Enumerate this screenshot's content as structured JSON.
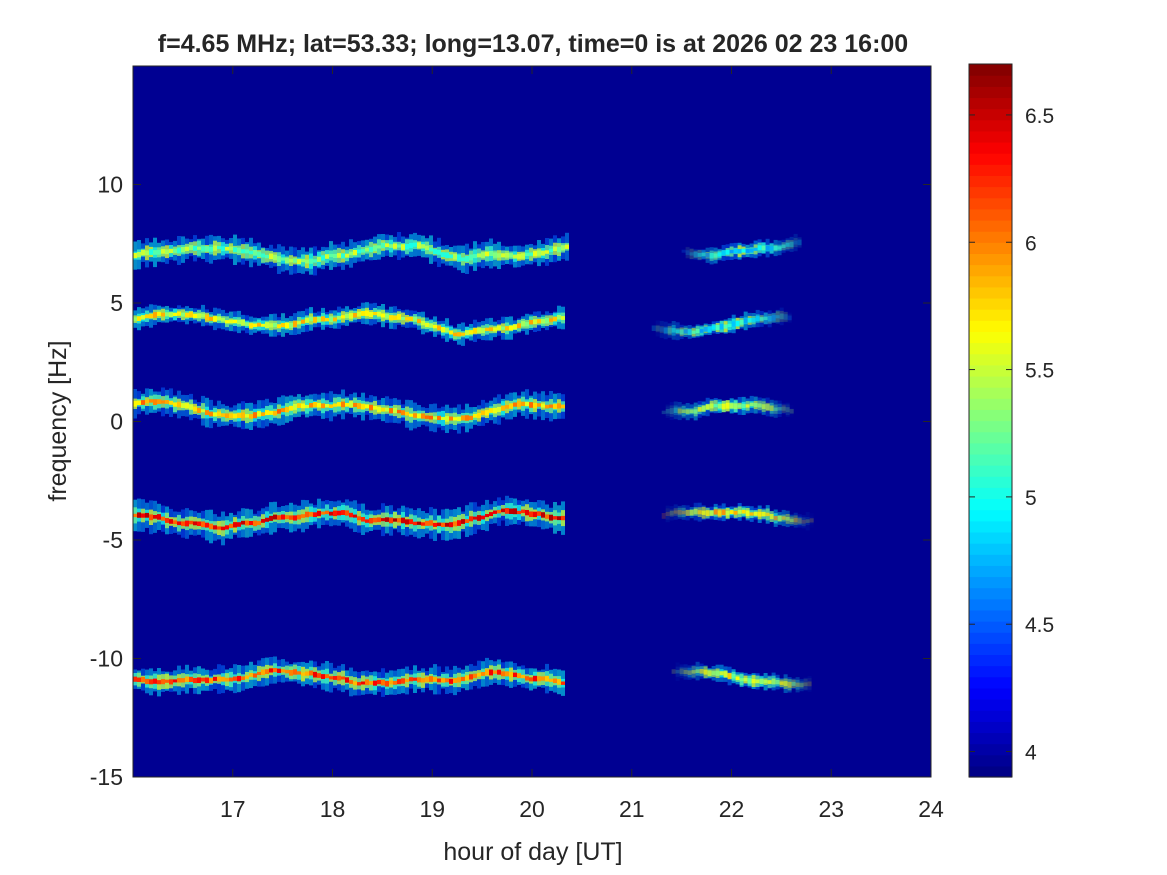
{
  "chart_data": {
    "type": "heatmap",
    "title": "f=4.65 MHz;  lat=53.33; long=13.07, time=0 is at 2026 02 23 16:00",
    "xlabel": "hour of day [UT]",
    "ylabel": "frequency [Hz]",
    "xlim": [
      16,
      24
    ],
    "ylim": [
      -15,
      15
    ],
    "xticks": [
      17,
      18,
      19,
      20,
      21,
      22,
      23,
      24
    ],
    "yticks": [
      -15,
      -10,
      -5,
      0,
      5,
      10
    ],
    "colorbar": {
      "clim": [
        3.9,
        6.7
      ],
      "ticks": [
        4,
        4.5,
        5,
        5.5,
        6,
        6.5
      ],
      "colormap": "jet"
    },
    "background_value": 3.95,
    "traces": [
      {
        "center_hz": 7.2,
        "start_hour": 16.0,
        "end_hour": 20.35,
        "peak": 5.6,
        "spread_hz": 0.45
      },
      {
        "center_hz": 4.2,
        "start_hour": 16.0,
        "end_hour": 20.3,
        "peak": 5.9,
        "spread_hz": 0.35
      },
      {
        "center_hz": 0.5,
        "start_hour": 16.0,
        "end_hour": 20.3,
        "peak": 6.1,
        "spread_hz": 0.45
      },
      {
        "center_hz": -4.1,
        "start_hour": 16.0,
        "end_hour": 20.3,
        "peak": 6.6,
        "spread_hz": 0.5
      },
      {
        "center_hz": -10.8,
        "start_hour": 16.0,
        "end_hour": 20.3,
        "peak": 6.4,
        "spread_hz": 0.45
      }
    ],
    "late_patches": [
      {
        "center_hz": 7.35,
        "start_hour": 21.5,
        "end_hour": 22.7,
        "peak": 5.2
      },
      {
        "center_hz": 4.1,
        "start_hour": 21.2,
        "end_hour": 22.6,
        "peak": 5.2
      },
      {
        "center_hz": 0.6,
        "start_hour": 21.3,
        "end_hour": 22.6,
        "peak": 5.7
      },
      {
        "center_hz": -4.0,
        "start_hour": 21.3,
        "end_hour": 22.8,
        "peak": 6.0
      },
      {
        "center_hz": -10.8,
        "start_hour": 21.4,
        "end_hour": 22.8,
        "peak": 5.8
      }
    ]
  },
  "colors": {
    "axis": "#262626",
    "background": "#ffffff"
  }
}
